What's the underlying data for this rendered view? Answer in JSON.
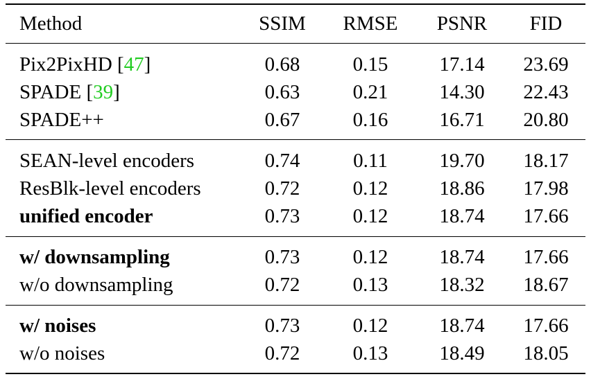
{
  "table": {
    "header": {
      "method": "Method",
      "ssim": "SSIM",
      "rmse": "RMSE",
      "psnr": "PSNR",
      "fid": "FID"
    },
    "groups": [
      {
        "rows": [
          {
            "method": "Pix2PixHD [",
            "cite": "47",
            "cite_close": "]",
            "ssim": "0.68",
            "rmse": "0.15",
            "psnr": "17.14",
            "fid": "23.69",
            "bold": false
          },
          {
            "method": "SPADE [",
            "cite": "39",
            "cite_close": "]",
            "ssim": "0.63",
            "rmse": "0.21",
            "psnr": "14.30",
            "fid": "22.43",
            "bold": false
          },
          {
            "method": "SPADE++",
            "ssim": "0.67",
            "rmse": "0.16",
            "psnr": "16.71",
            "fid": "20.80",
            "bold": false
          }
        ]
      },
      {
        "rows": [
          {
            "method": "SEAN-level encoders",
            "ssim": "0.74",
            "rmse": "0.11",
            "psnr": "19.70",
            "fid": "18.17",
            "bold": false
          },
          {
            "method": "ResBlk-level encoders",
            "ssim": "0.72",
            "rmse": "0.12",
            "psnr": "18.86",
            "fid": "17.98",
            "bold": false
          },
          {
            "method": "unified encoder",
            "ssim": "0.73",
            "rmse": "0.12",
            "psnr": "18.74",
            "fid": "17.66",
            "bold": true
          }
        ]
      },
      {
        "rows": [
          {
            "method": "w/ downsampling",
            "ssim": "0.73",
            "rmse": "0.12",
            "psnr": "18.74",
            "fid": "17.66",
            "bold": true
          },
          {
            "method": "w/o downsampling",
            "ssim": "0.72",
            "rmse": "0.13",
            "psnr": "18.32",
            "fid": "18.67",
            "bold": false
          }
        ]
      },
      {
        "rows": [
          {
            "method": "w/ noises",
            "ssim": "0.73",
            "rmse": "0.12",
            "psnr": "18.74",
            "fid": "17.66",
            "bold": true
          },
          {
            "method": "w/o noises",
            "ssim": "0.72",
            "rmse": "0.13",
            "psnr": "18.49",
            "fid": "18.05",
            "bold": false
          }
        ]
      }
    ]
  },
  "colors": {
    "citation_link": "#22cc22",
    "rules": "#000000",
    "text": "#000000"
  }
}
